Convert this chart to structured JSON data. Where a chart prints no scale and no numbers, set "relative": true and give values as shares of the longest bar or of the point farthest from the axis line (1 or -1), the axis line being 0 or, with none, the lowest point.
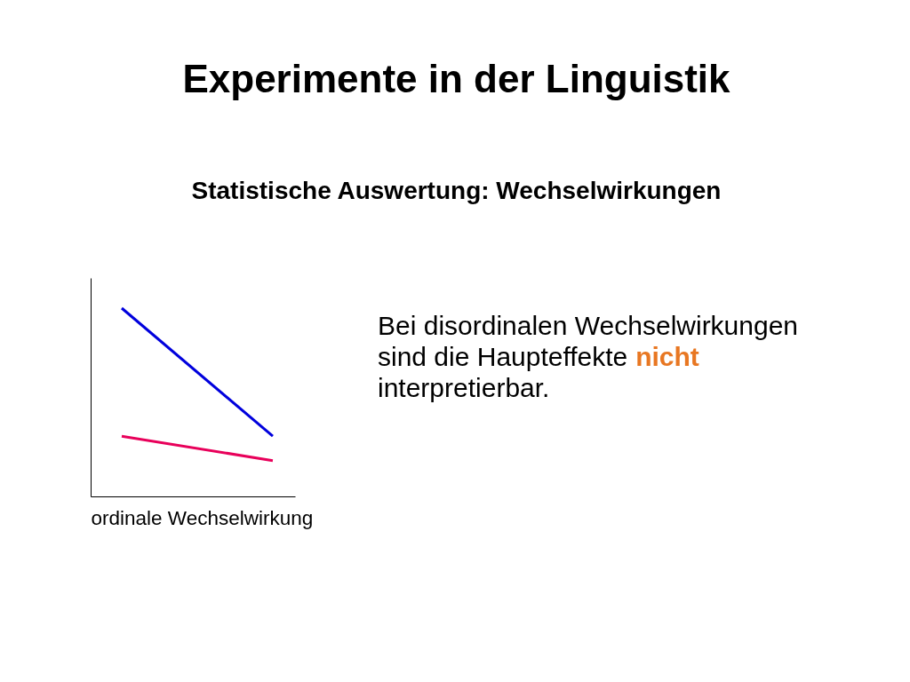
{
  "chart_data": [
    {
      "type": "line",
      "title": "Experimente in der Linguistik",
      "subtitle": "Statistische Auswertung: Wechselwirkungen",
      "xlabel": "ordinale Wechselwirkung",
      "categories": [
        null,
        null
      ],
      "relative": true,
      "series": [
        {
          "color": "#0000dd",
          "values": [
            1,
            0.32
          ]
        },
        {
          "color": "#e8005a",
          "values": [
            0.32,
            0.19
          ]
        }
      ]
    },
    {
      "type": "other",
      "annotations": [
        "Bei disordinalen Wechselwirkungen",
        "sind die Haupteffekte",
        "nicht",
        "interpretierbar."
      ],
      "colors": [
        "#000000",
        "#000000",
        "#e87722",
        "#000000"
      ]
    }
  ]
}
